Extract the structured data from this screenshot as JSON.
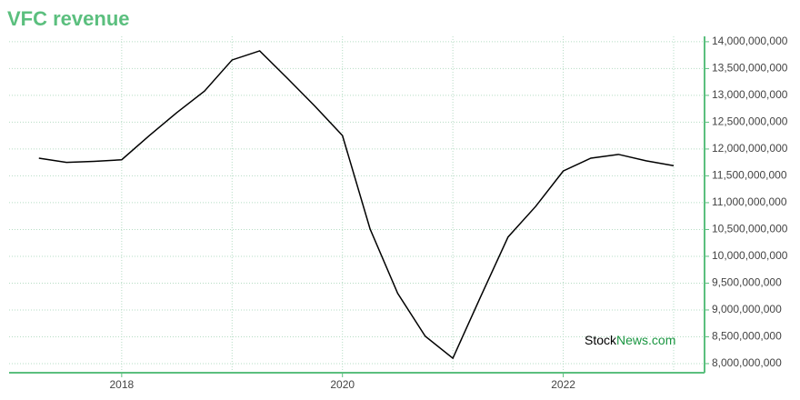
{
  "chart_data": {
    "type": "line",
    "title": "VFC revenue",
    "x": [
      2017.25,
      2017.5,
      2017.75,
      2018.0,
      2018.25,
      2018.5,
      2018.75,
      2019.0,
      2019.25,
      2019.5,
      2019.75,
      2020.0,
      2020.25,
      2020.5,
      2020.75,
      2021.0,
      2021.25,
      2021.5,
      2021.75,
      2022.0,
      2022.25,
      2022.5,
      2022.75,
      2023.0
    ],
    "series": [
      {
        "name": "VFC revenue",
        "color": "#000000",
        "values": [
          11830000000,
          11750000000,
          11770000000,
          11800000000,
          12250000000,
          12680000000,
          13080000000,
          13660000000,
          13830000000,
          13320000000,
          12800000000,
          12250000000,
          10510000000,
          9310000000,
          8510000000,
          8100000000,
          9240000000,
          10360000000,
          10930000000,
          11590000000,
          11830000000,
          11900000000,
          11780000000,
          11690000000
        ]
      }
    ],
    "xlim": [
      2016.98,
      2023.28
    ],
    "xticks": [
      2018,
      2020,
      2022
    ],
    "x_minor_grid": [
      2019,
      2021,
      2023
    ],
    "ylim": [
      7830000000,
      14100000000
    ],
    "yticks": [
      {
        "value": 8000000000,
        "label": "8,000,000,000"
      },
      {
        "value": 8500000000,
        "label": "8,500,000,000"
      },
      {
        "value": 9000000000,
        "label": "9,000,000,000"
      },
      {
        "value": 9500000000,
        "label": "9,500,000,000"
      },
      {
        "value": 10000000000,
        "label": "10,000,000,000"
      },
      {
        "value": 10500000000,
        "label": "10,500,000,000"
      },
      {
        "value": 11000000000,
        "label": "11,000,000,000"
      },
      {
        "value": 11500000000,
        "label": "11,500,000,000"
      },
      {
        "value": 12000000000,
        "label": "12,000,000,000"
      },
      {
        "value": 12500000000,
        "label": "12,500,000,000"
      },
      {
        "value": 13000000000,
        "label": "13,000,000,000"
      },
      {
        "value": 13500000000,
        "label": "13,500,000,000"
      },
      {
        "value": 14000000000,
        "label": "14,000,000,000"
      }
    ],
    "grid": true,
    "axis_color": "#5bbf7e",
    "grid_color": "#b5dcc4",
    "watermark": {
      "first": "Stock",
      "second": "News.com",
      "second_color": "#1a9641"
    }
  }
}
